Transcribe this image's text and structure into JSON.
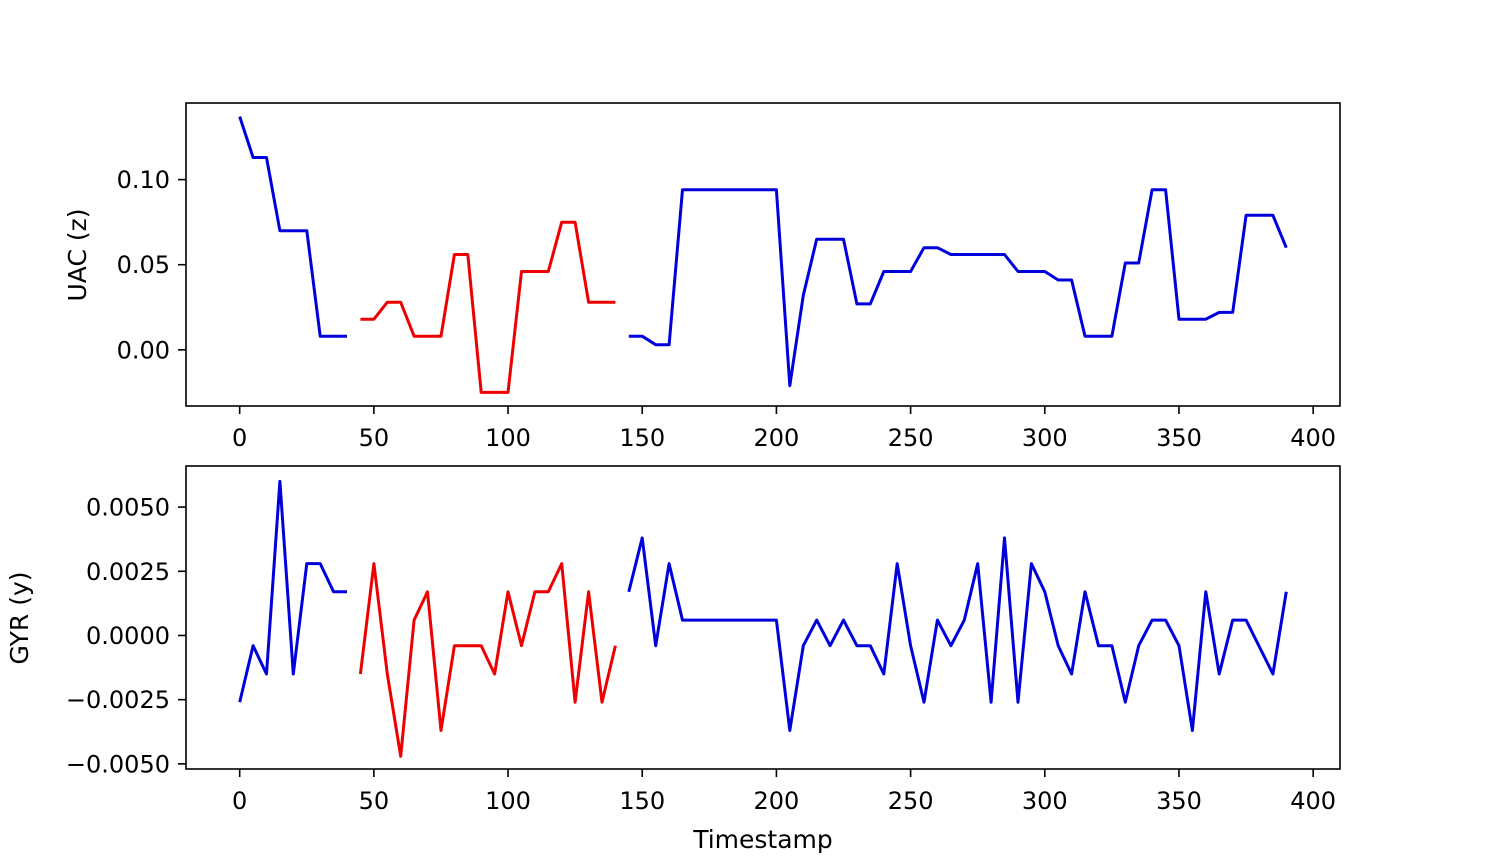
{
  "chart_data": [
    {
      "type": "line",
      "ylabel": "UAC (z)",
      "xlabel": "",
      "xlim": [
        -20,
        410
      ],
      "ylim": [
        -0.033,
        0.145
      ],
      "xticks": [
        0,
        50,
        100,
        150,
        200,
        250,
        300,
        350,
        400
      ],
      "xtick_labels": [
        "0",
        "50",
        "100",
        "150",
        "200",
        "250",
        "300",
        "350",
        "400"
      ],
      "yticks": [
        0.0,
        0.05,
        0.1
      ],
      "ytick_labels": [
        "0.00",
        "0.05",
        "0.10"
      ],
      "grid": false,
      "series": [
        {
          "color": "#0000dd",
          "points": [
            [
              0,
              0.137
            ],
            [
              5,
              0.113
            ],
            [
              10,
              0.113
            ],
            [
              15,
              0.07
            ],
            [
              25,
              0.07
            ],
            [
              30,
              0.008
            ],
            [
              40,
              0.008
            ]
          ]
        },
        {
          "color": "#ee0000",
          "points": [
            [
              45,
              0.018
            ],
            [
              50,
              0.018
            ],
            [
              55,
              0.028
            ],
            [
              60,
              0.028
            ],
            [
              65,
              0.008
            ],
            [
              75,
              0.008
            ],
            [
              80,
              0.056
            ],
            [
              85,
              0.056
            ],
            [
              90,
              -0.025
            ],
            [
              100,
              -0.025
            ],
            [
              105,
              0.046
            ],
            [
              115,
              0.046
            ],
            [
              120,
              0.075
            ],
            [
              125,
              0.075
            ],
            [
              130,
              0.028
            ],
            [
              140,
              0.028
            ]
          ]
        },
        {
          "color": "#0000dd",
          "points": [
            [
              145,
              0.008
            ],
            [
              150,
              0.008
            ],
            [
              155,
              0.003
            ],
            [
              160,
              0.003
            ],
            [
              165,
              0.094
            ],
            [
              200,
              0.094
            ],
            [
              205,
              -0.021
            ],
            [
              210,
              0.032
            ],
            [
              215,
              0.065
            ],
            [
              225,
              0.065
            ],
            [
              230,
              0.027
            ],
            [
              235,
              0.027
            ],
            [
              240,
              0.046
            ],
            [
              250,
              0.046
            ],
            [
              255,
              0.06
            ],
            [
              260,
              0.06
            ],
            [
              265,
              0.056
            ],
            [
              285,
              0.056
            ],
            [
              290,
              0.046
            ],
            [
              300,
              0.046
            ],
            [
              305,
              0.041
            ],
            [
              310,
              0.041
            ],
            [
              315,
              0.008
            ],
            [
              325,
              0.008
            ],
            [
              330,
              0.051
            ],
            [
              335,
              0.051
            ],
            [
              340,
              0.094
            ],
            [
              345,
              0.094
            ],
            [
              350,
              0.018
            ],
            [
              360,
              0.018
            ],
            [
              365,
              0.022
            ],
            [
              370,
              0.022
            ],
            [
              375,
              0.079
            ],
            [
              385,
              0.079
            ],
            [
              390,
              0.06
            ]
          ]
        }
      ]
    },
    {
      "type": "line",
      "ylabel": "GYR (y)",
      "xlabel": "Timestamp",
      "xlim": [
        -20,
        410
      ],
      "ylim": [
        -0.0052,
        0.0066
      ],
      "xticks": [
        0,
        50,
        100,
        150,
        200,
        250,
        300,
        350,
        400
      ],
      "xtick_labels": [
        "0",
        "50",
        "100",
        "150",
        "200",
        "250",
        "300",
        "350",
        "400"
      ],
      "yticks": [
        -0.005,
        -0.0025,
        0.0,
        0.0025,
        0.005
      ],
      "ytick_labels": [
        "−0.0050",
        "−0.0025",
        "0.0000",
        "0.0025",
        "0.0050"
      ],
      "grid": false,
      "series": [
        {
          "color": "#0000dd",
          "points": [
            [
              0,
              -0.0026
            ],
            [
              5,
              -0.0004
            ],
            [
              10,
              -0.0015
            ],
            [
              15,
              0.006
            ],
            [
              20,
              -0.0015
            ],
            [
              25,
              0.0028
            ],
            [
              30,
              0.0028
            ],
            [
              35,
              0.0017
            ],
            [
              40,
              0.0017
            ]
          ]
        },
        {
          "color": "#ee0000",
          "points": [
            [
              45,
              -0.0015
            ],
            [
              50,
              0.0028
            ],
            [
              55,
              -0.0015
            ],
            [
              60,
              -0.0047
            ],
            [
              65,
              0.0006
            ],
            [
              70,
              0.0017
            ],
            [
              75,
              -0.0037
            ],
            [
              80,
              -0.0004
            ],
            [
              90,
              -0.0004
            ],
            [
              95,
              -0.0015
            ],
            [
              100,
              0.0017
            ],
            [
              105,
              -0.0004
            ],
            [
              110,
              0.0017
            ],
            [
              115,
              0.0017
            ],
            [
              120,
              0.0028
            ],
            [
              125,
              -0.0026
            ],
            [
              130,
              0.0017
            ],
            [
              135,
              -0.0026
            ],
            [
              140,
              -0.0004
            ]
          ]
        },
        {
          "color": "#0000dd",
          "points": [
            [
              145,
              0.0017
            ],
            [
              150,
              0.0038
            ],
            [
              155,
              -0.0004
            ],
            [
              160,
              0.0028
            ],
            [
              165,
              0.0006
            ],
            [
              200,
              0.0006
            ],
            [
              205,
              -0.0037
            ],
            [
              210,
              -0.0004
            ],
            [
              215,
              0.0006
            ],
            [
              220,
              -0.0004
            ],
            [
              225,
              0.0006
            ],
            [
              230,
              -0.0004
            ],
            [
              235,
              -0.0004
            ],
            [
              240,
              -0.0015
            ],
            [
              245,
              0.0028
            ],
            [
              250,
              -0.0004
            ],
            [
              255,
              -0.0026
            ],
            [
              260,
              0.0006
            ],
            [
              265,
              -0.0004
            ],
            [
              270,
              0.0006
            ],
            [
              275,
              0.0028
            ],
            [
              280,
              -0.0026
            ],
            [
              285,
              0.0038
            ],
            [
              290,
              -0.0026
            ],
            [
              295,
              0.0028
            ],
            [
              300,
              0.0017
            ],
            [
              305,
              -0.0004
            ],
            [
              310,
              -0.0015
            ],
            [
              315,
              0.0017
            ],
            [
              320,
              -0.0004
            ],
            [
              325,
              -0.0004
            ],
            [
              330,
              -0.0026
            ],
            [
              335,
              -0.0004
            ],
            [
              340,
              0.0006
            ],
            [
              345,
              0.0006
            ],
            [
              350,
              -0.0004
            ],
            [
              355,
              -0.0037
            ],
            [
              360,
              0.0017
            ],
            [
              365,
              -0.0015
            ],
            [
              370,
              0.0006
            ],
            [
              375,
              0.0006
            ],
            [
              385,
              -0.0015
            ],
            [
              390,
              0.0017
            ]
          ]
        }
      ]
    }
  ]
}
